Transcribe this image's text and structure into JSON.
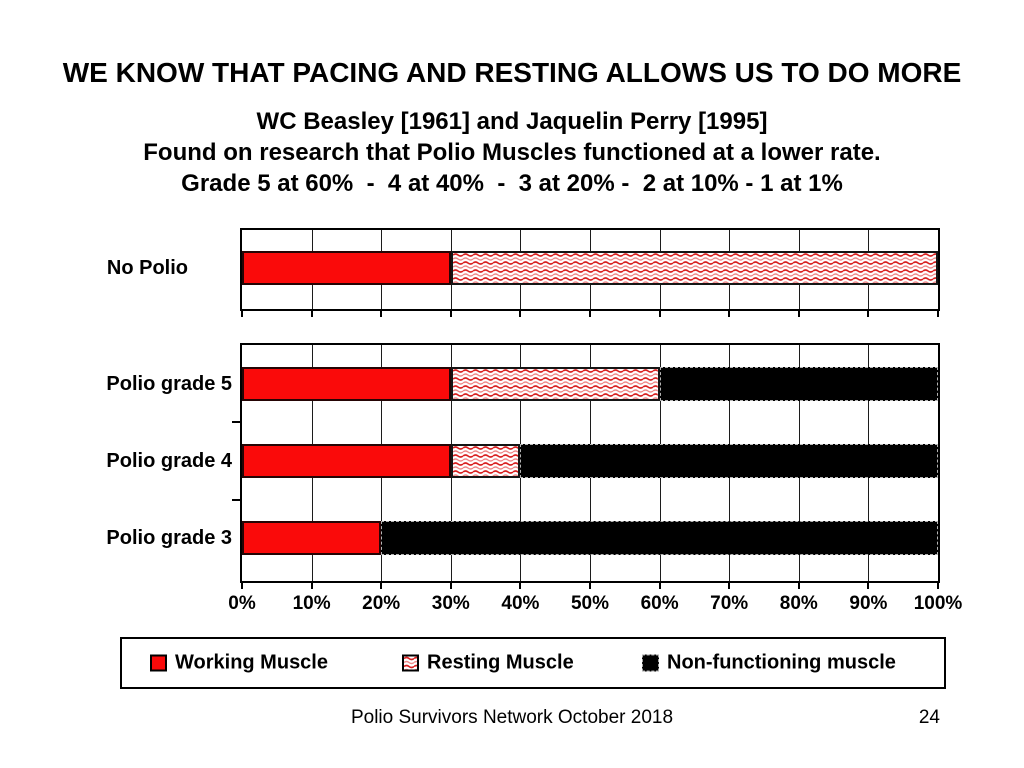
{
  "title": "WE KNOW THAT PACING AND RESTING ALLOWS US TO DO MORE",
  "subtitle": {
    "line1": "WC Beasley [1961] and Jaquelin Perry [1995]",
    "line2": "Found on research that Polio Muscles functioned at a lower rate.",
    "line3": "Grade 5 at 60%  -  4 at 40%  -  3 at 20% -  2 at 10% - 1 at 1%"
  },
  "colors": {
    "working_red": "#fa0a0a",
    "resting_wave_dark": "#d92121",
    "resting_wave_light": "#ef8a8a",
    "non_functioning_black": "#000000"
  },
  "chart_data": [
    {
      "type": "bar",
      "orientation": "horizontal",
      "categories": [
        "No Polio"
      ],
      "series": [
        {
          "name": "Working Muscle",
          "values": [
            30
          ],
          "style": "solid-red"
        },
        {
          "name": "Resting Muscle",
          "values": [
            70
          ],
          "style": "red-wave-pattern"
        },
        {
          "name": "Non-functioning muscle",
          "values": [
            0
          ],
          "style": "solid-black"
        }
      ],
      "xlim": [
        0,
        100
      ],
      "grid": true,
      "x_tick_step": 10,
      "x_tick_labels_visible": false
    },
    {
      "type": "bar",
      "orientation": "horizontal",
      "categories": [
        "Polio grade 5",
        "Polio grade 4",
        "Polio grade 3"
      ],
      "series": [
        {
          "name": "Working Muscle",
          "values": [
            30,
            30,
            20
          ],
          "style": "solid-red"
        },
        {
          "name": "Resting Muscle",
          "values": [
            30,
            10,
            0
          ],
          "style": "red-wave-pattern"
        },
        {
          "name": "Non-functioning muscle",
          "values": [
            40,
            60,
            80
          ],
          "style": "solid-black"
        }
      ],
      "xlim": [
        0,
        100
      ],
      "grid": true,
      "x_tick_labels": [
        "0%",
        "10%",
        "20%",
        "30%",
        "40%",
        "50%",
        "60%",
        "70%",
        "80%",
        "90%",
        "100%"
      ]
    }
  ],
  "legend": {
    "items": [
      {
        "label": "Working Muscle",
        "style": "solid-red"
      },
      {
        "label": "Resting Muscle",
        "style": "red-wave-pattern"
      },
      {
        "label": "Non-functioning muscle",
        "style": "solid-black"
      }
    ]
  },
  "footer": {
    "text": "Polio Survivors Network October 2018",
    "page": "24"
  }
}
